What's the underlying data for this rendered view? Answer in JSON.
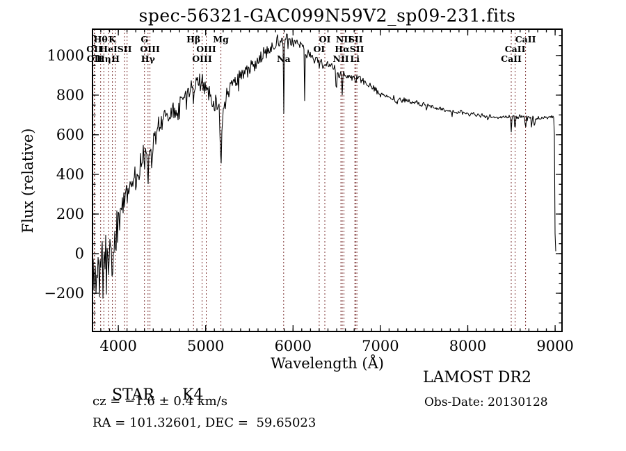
{
  "title": "spec-56321-GAC099N59V2_sp09-231.fits",
  "annotations": {
    "object_class": "STAR",
    "subclass": "K4",
    "cz": "cz = −1.6 ± 0.4 km/s",
    "ra_dec": "RA = 101.32601, DEC =  59.65023",
    "survey": "LAMOST DR2",
    "obs_date": "Obs-Date: 20130128"
  },
  "chart_data": {
    "type": "line",
    "title": "spec-56321-GAC099N59V2_sp09-231.fits",
    "xlabel": "Wavelength (Å)",
    "ylabel": "Flux (relative)",
    "xlim": [
      3705,
      9079
    ],
    "ylim": [
      -393,
      1133
    ],
    "xticks": [
      4000,
      5000,
      6000,
      7000,
      8000,
      9000
    ],
    "yticks": [
      -200,
      0,
      200,
      400,
      600,
      800,
      1000
    ],
    "x_minor_step": 100,
    "y_minor_step": 50,
    "grid": false,
    "trace_color": "#000000",
    "marker_line_color": "#7b3030",
    "spectral_lines": [
      {
        "label": "OII",
        "wl": 3726,
        "row": 2
      },
      {
        "label": "OII",
        "wl": 3729,
        "row": 3
      },
      {
        "label": "Hθ",
        "wl": 3798,
        "row": 1
      },
      {
        "label": "Hη",
        "wl": 3835,
        "row": 3
      },
      {
        "label": "HeI",
        "wl": 3889,
        "row": 2
      },
      {
        "label": "K",
        "wl": 3933,
        "row": 1
      },
      {
        "label": "H",
        "wl": 3968,
        "row": 3
      },
      {
        "label": "SII",
        "wl": 4072,
        "row": 2
      },
      {
        "label": "",
        "wl": 4101,
        "row": 0
      },
      {
        "label": "G",
        "wl": 4300,
        "row": 1
      },
      {
        "label": "Hγ",
        "wl": 4340,
        "row": 3
      },
      {
        "label": "OIII",
        "wl": 4363,
        "row": 2
      },
      {
        "label": "Hβ",
        "wl": 4861,
        "row": 1
      },
      {
        "label": "OIII",
        "wl": 4959,
        "row": 3
      },
      {
        "label": "OIII",
        "wl": 5007,
        "row": 2
      },
      {
        "label": "Mg",
        "wl": 5175,
        "row": 1
      },
      {
        "label": "Na",
        "wl": 5893,
        "row": 3
      },
      {
        "label": "OI",
        "wl": 6300,
        "row": 2
      },
      {
        "label": "OI",
        "wl": 6364,
        "row": 1
      },
      {
        "label": "NII",
        "wl": 6548,
        "row": 3
      },
      {
        "label": "Hα",
        "wl": 6563,
        "row": 2
      },
      {
        "label": "NII",
        "wl": 6583,
        "row": 1
      },
      {
        "label": "Li",
        "wl": 6708,
        "row": 3
      },
      {
        "label": "SII",
        "wl": 6716,
        "row": 1
      },
      {
        "label": "SII",
        "wl": 6731,
        "row": 2
      },
      {
        "label": "CaII",
        "wl": 8498,
        "row": 3
      },
      {
        "label": "CaII",
        "wl": 8542,
        "row": 2
      },
      {
        "label": "CaII",
        "wl": 8662,
        "row": 1
      }
    ],
    "envelope": [
      [
        3705,
        -130
      ],
      [
        3750,
        -60
      ],
      [
        3800,
        -90
      ],
      [
        3850,
        -20
      ],
      [
        3900,
        20
      ],
      [
        3950,
        60
      ],
      [
        4000,
        170
      ],
      [
        4050,
        260
      ],
      [
        4100,
        330
      ],
      [
        4150,
        360
      ],
      [
        4200,
        395
      ],
      [
        4250,
        430
      ],
      [
        4300,
        485
      ],
      [
        4350,
        520
      ],
      [
        4400,
        575
      ],
      [
        4450,
        630
      ],
      [
        4500,
        675
      ],
      [
        4550,
        700
      ],
      [
        4600,
        715
      ],
      [
        4650,
        735
      ],
      [
        4700,
        755
      ],
      [
        4750,
        795
      ],
      [
        4800,
        835
      ],
      [
        4860,
        865
      ],
      [
        4900,
        875
      ],
      [
        4950,
        865
      ],
      [
        5000,
        835
      ],
      [
        5050,
        800
      ],
      [
        5100,
        775
      ],
      [
        5150,
        745
      ],
      [
        5200,
        730
      ],
      [
        5250,
        815
      ],
      [
        5300,
        860
      ],
      [
        5350,
        880
      ],
      [
        5400,
        900
      ],
      [
        5450,
        915
      ],
      [
        5500,
        930
      ],
      [
        5550,
        950
      ],
      [
        5600,
        975
      ],
      [
        5650,
        995
      ],
      [
        5700,
        1020
      ],
      [
        5750,
        1045
      ],
      [
        5800,
        1070
      ],
      [
        5850,
        1085
      ],
      [
        5900,
        1085
      ],
      [
        5950,
        1075
      ],
      [
        6000,
        1065
      ],
      [
        6050,
        1060
      ],
      [
        6100,
        1045
      ],
      [
        6150,
        1025
      ],
      [
        6200,
        1005
      ],
      [
        6250,
        985
      ],
      [
        6300,
        970
      ],
      [
        6350,
        955
      ],
      [
        6400,
        945
      ],
      [
        6450,
        935
      ],
      [
        6500,
        925
      ],
      [
        6550,
        910
      ],
      [
        6600,
        900
      ],
      [
        6650,
        893
      ],
      [
        6700,
        888
      ],
      [
        6750,
        882
      ],
      [
        6800,
        875
      ],
      [
        6900,
        840
      ],
      [
        7000,
        805
      ],
      [
        7100,
        790
      ],
      [
        7200,
        780
      ],
      [
        7300,
        770
      ],
      [
        7400,
        760
      ],
      [
        7500,
        750
      ],
      [
        7600,
        740
      ],
      [
        7700,
        730
      ],
      [
        7800,
        720
      ],
      [
        7900,
        713
      ],
      [
        8000,
        707
      ],
      [
        8100,
        700
      ],
      [
        8200,
        695
      ],
      [
        8300,
        690
      ],
      [
        8400,
        688
      ],
      [
        8500,
        690
      ],
      [
        8600,
        692
      ],
      [
        8700,
        690
      ],
      [
        8800,
        685
      ],
      [
        8900,
        688
      ],
      [
        8960,
        690
      ],
      [
        8990,
        688
      ],
      [
        8995,
        400
      ],
      [
        9000,
        60
      ],
      [
        9005,
        10
      ],
      [
        9010,
        8
      ]
    ],
    "noise_amplitude": [
      [
        3705,
        210
      ],
      [
        3800,
        200
      ],
      [
        3900,
        160
      ],
      [
        4000,
        130
      ],
      [
        4100,
        100
      ],
      [
        4200,
        90
      ],
      [
        4300,
        85
      ],
      [
        4400,
        75
      ],
      [
        4500,
        65
      ],
      [
        4700,
        60
      ],
      [
        4900,
        55
      ],
      [
        5100,
        55
      ],
      [
        5300,
        50
      ],
      [
        5500,
        45
      ],
      [
        5700,
        42
      ],
      [
        5900,
        38
      ],
      [
        6100,
        35
      ],
      [
        6300,
        32
      ],
      [
        6500,
        28
      ],
      [
        6700,
        25
      ],
      [
        7000,
        20
      ],
      [
        7500,
        16
      ],
      [
        8000,
        13
      ],
      [
        8400,
        12
      ],
      [
        8700,
        15
      ],
      [
        8900,
        12
      ],
      [
        9010,
        5
      ]
    ],
    "absorption_dips": [
      [
        3933,
        120,
        6
      ],
      [
        3968,
        100,
        6
      ],
      [
        4045,
        80,
        3
      ],
      [
        4101,
        90,
        4
      ],
      [
        4226,
        90,
        3
      ],
      [
        4340,
        130,
        6
      ],
      [
        4384,
        100,
        3
      ],
      [
        4861,
        110,
        5
      ],
      [
        4920,
        60,
        3
      ],
      [
        5175,
        300,
        9
      ],
      [
        5270,
        70,
        3
      ],
      [
        5886,
        -55,
        2
      ],
      [
        5893,
        380,
        4
      ],
      [
        6135,
        320,
        3
      ],
      [
        6162,
        60,
        3
      ],
      [
        6495,
        110,
        5
      ],
      [
        6563,
        110,
        4
      ],
      [
        7190,
        40,
        3
      ],
      [
        8230,
        40,
        3
      ],
      [
        8498,
        70,
        4
      ],
      [
        8542,
        90,
        4
      ],
      [
        8662,
        80,
        4
      ],
      [
        8730,
        60,
        4
      ],
      [
        8762,
        50,
        3
      ]
    ]
  }
}
